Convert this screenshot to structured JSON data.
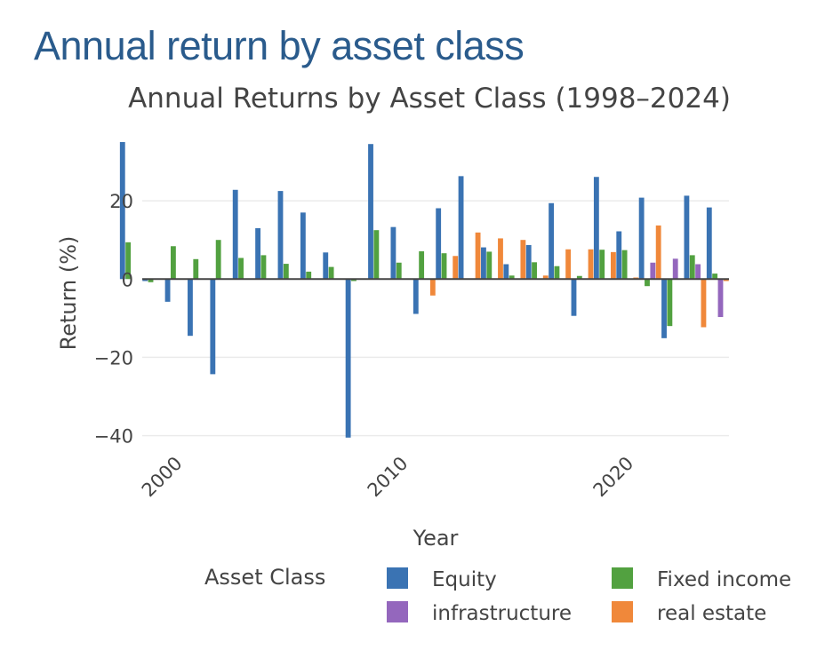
{
  "page": {
    "heading": "Annual return by asset class"
  },
  "chart_data": {
    "type": "bar",
    "title": "Annual Returns by Asset Class (1998–2024)",
    "xlabel": "Year",
    "ylabel": "Return (%)",
    "x_ticks": [
      2000,
      2010,
      2020
    ],
    "y_ticks": [
      -40,
      -20,
      0,
      20
    ],
    "y_tick_labels": [
      "−40",
      "−20",
      "0",
      "20"
    ],
    "xlim": [
      1998.5,
      2024.5
    ],
    "ylim": [
      -41,
      35
    ],
    "grid": true,
    "legend_title": "Asset Class",
    "legend_placement": "bottom",
    "series": [
      {
        "name": "Equity",
        "color": "#3a73b3",
        "x": [
          1998,
          1999,
          2000,
          2001,
          2002,
          2003,
          2004,
          2005,
          2006,
          2007,
          2008,
          2009,
          2010,
          2011,
          2012,
          2013,
          2014,
          2015,
          2016,
          2017,
          2018,
          2019,
          2020,
          2021,
          2022,
          2023,
          2024
        ],
        "values": [
          35,
          -0.5,
          -5.8,
          -14.5,
          -24.3,
          22.8,
          13,
          22.5,
          17,
          6.8,
          -40.5,
          34.5,
          13.3,
          -8.9,
          18.1,
          26.3,
          8.1,
          3.8,
          8.7,
          19.4,
          -9.4,
          26.1,
          12.2,
          20.8,
          -15.1,
          21.3,
          18.3
        ]
      },
      {
        "name": "Fixed income",
        "color": "#52a140",
        "x": [
          1998,
          1999,
          2000,
          2001,
          2002,
          2003,
          2004,
          2005,
          2006,
          2007,
          2008,
          2009,
          2010,
          2011,
          2012,
          2013,
          2014,
          2015,
          2016,
          2017,
          2018,
          2019,
          2020,
          2021,
          2022,
          2023,
          2024
        ],
        "values": [
          9.4,
          -0.8,
          8.4,
          5.1,
          10,
          5.4,
          6.1,
          3.9,
          1.9,
          3.1,
          -0.5,
          12.5,
          4.2,
          7.1,
          6.6,
          0,
          7,
          0.9,
          4.3,
          3.3,
          0.8,
          7.5,
          7.4,
          -1.8,
          -12,
          6.1,
          1.4
        ]
      },
      {
        "name": "infrastructure",
        "color": "#9467bd",
        "x": [
          2021,
          2022,
          2023,
          2024
        ],
        "values": [
          4.2,
          5.2,
          3.8,
          -9.7
        ]
      },
      {
        "name": "real estate",
        "color": "#f0883a",
        "x": [
          2011,
          2012,
          2013,
          2014,
          2015,
          2016,
          2017,
          2018,
          2019,
          2020,
          2021,
          2022,
          2023,
          2024
        ],
        "values": [
          -4.2,
          5.9,
          11.9,
          10.4,
          10,
          0.9,
          7.6,
          7.6,
          6.9,
          0.4,
          13.7,
          0,
          -12.3,
          -0.5
        ]
      }
    ]
  }
}
